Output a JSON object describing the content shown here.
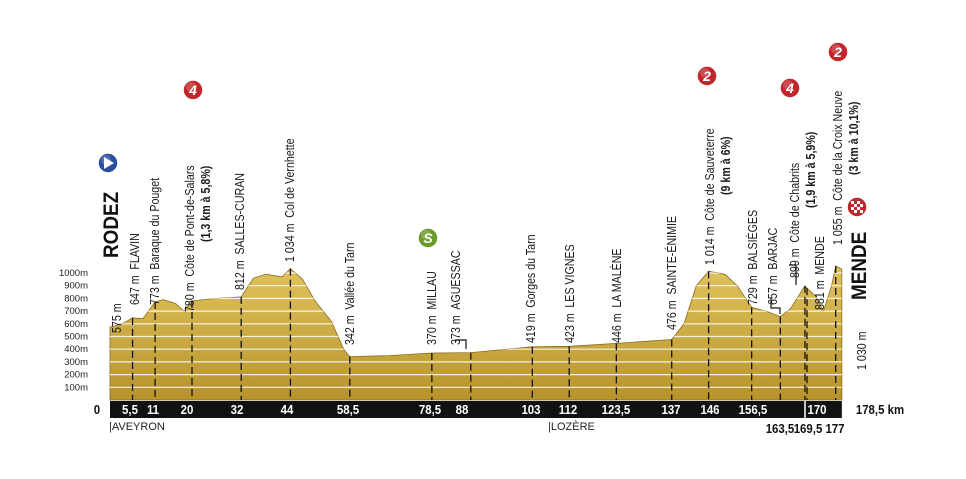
{
  "chart_data": {
    "type": "area",
    "title": "",
    "x_unit": "km",
    "y_unit": "m",
    "ylim": [
      0,
      1000
    ],
    "y_ticks": [
      "100m",
      "200m",
      "300m",
      "400m",
      "500m",
      "600m",
      "700m",
      "800m",
      "900m",
      "1000m"
    ],
    "start": {
      "name": "RODEZ",
      "km": 0,
      "altitude": "575 m"
    },
    "finish": {
      "name": "MENDE",
      "km": 178.5,
      "altitude": "1 030 m"
    },
    "profile": [
      {
        "km": 0,
        "alt": 575
      },
      {
        "km": 3,
        "alt": 600
      },
      {
        "km": 5.5,
        "alt": 647
      },
      {
        "km": 8,
        "alt": 640
      },
      {
        "km": 11,
        "alt": 773
      },
      {
        "km": 13,
        "alt": 790
      },
      {
        "km": 16,
        "alt": 760
      },
      {
        "km": 18,
        "alt": 700
      },
      {
        "km": 20,
        "alt": 780
      },
      {
        "km": 26,
        "alt": 800
      },
      {
        "km": 32,
        "alt": 812
      },
      {
        "km": 35,
        "alt": 960
      },
      {
        "km": 38,
        "alt": 990
      },
      {
        "km": 42,
        "alt": 970
      },
      {
        "km": 44,
        "alt": 1034
      },
      {
        "km": 47,
        "alt": 950
      },
      {
        "km": 50,
        "alt": 780
      },
      {
        "km": 54,
        "alt": 620
      },
      {
        "km": 57,
        "alt": 400
      },
      {
        "km": 58.5,
        "alt": 342
      },
      {
        "km": 68,
        "alt": 350
      },
      {
        "km": 78.5,
        "alt": 370
      },
      {
        "km": 88,
        "alt": 373
      },
      {
        "km": 103,
        "alt": 419
      },
      {
        "km": 112,
        "alt": 423
      },
      {
        "km": 123.5,
        "alt": 446
      },
      {
        "km": 137,
        "alt": 476
      },
      {
        "km": 140,
        "alt": 600
      },
      {
        "km": 143,
        "alt": 900
      },
      {
        "km": 146,
        "alt": 1014
      },
      {
        "km": 150,
        "alt": 990
      },
      {
        "km": 153,
        "alt": 900
      },
      {
        "km": 156.5,
        "alt": 729
      },
      {
        "km": 160,
        "alt": 700
      },
      {
        "km": 163.5,
        "alt": 657
      },
      {
        "km": 166,
        "alt": 720
      },
      {
        "km": 169.5,
        "alt": 899
      },
      {
        "km": 170,
        "alt": 881
      },
      {
        "km": 172,
        "alt": 820
      },
      {
        "km": 174,
        "alt": 700
      },
      {
        "km": 176,
        "alt": 900
      },
      {
        "km": 177,
        "alt": 1055
      },
      {
        "km": 178.5,
        "alt": 1030
      }
    ],
    "waypoints": [
      {
        "km": 0,
        "alt": "575 m",
        "name": "",
        "bold": ""
      },
      {
        "km": 5.5,
        "alt": "647 m",
        "name": "FLAVIN",
        "bold": ""
      },
      {
        "km": 11,
        "alt": "773 m",
        "name": "Baraque du Pouget",
        "bold": ""
      },
      {
        "km": 20,
        "alt": "780 m",
        "name": "Côte de Pont-de-Salars",
        "bold": "(1,3 km à 5,8%)",
        "category": "4"
      },
      {
        "km": 32,
        "alt": "812 m",
        "name": "SALLES-CURAN",
        "bold": ""
      },
      {
        "km": 44,
        "alt": "1 034 m",
        "name": "Col de Vernhette",
        "bold": ""
      },
      {
        "km": 58.5,
        "alt": "342 m",
        "name": "Vallée du Tarn",
        "bold": ""
      },
      {
        "km": 78.5,
        "alt": "370 m",
        "name": "MILLAU",
        "bold": "",
        "sprint": "S"
      },
      {
        "km": 88,
        "alt": "373 m",
        "name": "AGUESSAC",
        "bold": ""
      },
      {
        "km": 103,
        "alt": "419 m",
        "name": "Gorges du Tarn",
        "bold": ""
      },
      {
        "km": 112,
        "alt": "423 m",
        "name": "LES VIGNES",
        "bold": ""
      },
      {
        "km": 123.5,
        "alt": "446 m",
        "name": "LA MALÈNE",
        "bold": ""
      },
      {
        "km": 137,
        "alt": "476 m",
        "name": "SAINTE-ÉNIMIE",
        "bold": ""
      },
      {
        "km": 146,
        "alt": "1 014 m",
        "name": "Côte de Sauveterre",
        "bold": "(9 km à 6%)",
        "category": "2"
      },
      {
        "km": 156.5,
        "alt": "729 m",
        "name": "BALSIÈGES",
        "bold": ""
      },
      {
        "km": 163.5,
        "alt": "657 m",
        "name": "BARJAC",
        "bold": ""
      },
      {
        "km": 169.5,
        "alt": "899 m",
        "name": "Côte de Chabrits",
        "bold": "(1,9 km à 5,9%)",
        "category": "4"
      },
      {
        "km": 170,
        "alt": "881 m",
        "name": "MENDE",
        "bold": ""
      },
      {
        "km": 177,
        "alt": "1 055 m",
        "name": "Côte de la Croix Neuve",
        "bold": "(3 km à 10,1%)",
        "category": "2"
      }
    ],
    "km_ticks": [
      "0",
      "5,5",
      "11",
      "20",
      "32",
      "44",
      "58,5",
      "78,5",
      "88",
      "103",
      "112",
      "123,5",
      "137",
      "146",
      "156,5",
      "170",
      "178,5 km"
    ],
    "km_ticks_below": [
      "163,5",
      "169,5",
      "177"
    ],
    "regions": [
      "|AVEYRON",
      "|LOZÈRE"
    ]
  },
  "colors": {
    "terrain": "#cfae45",
    "category_badge": "#c0262b",
    "sprint_badge": "#6a9a2a",
    "start_badge": "#2a4fa0",
    "axis_bar": "#111111"
  },
  "icons": {
    "start": "play-icon",
    "finish": "checkered-flag-icon",
    "climb": "climb-category-badge",
    "sprint": "sprint-badge"
  }
}
